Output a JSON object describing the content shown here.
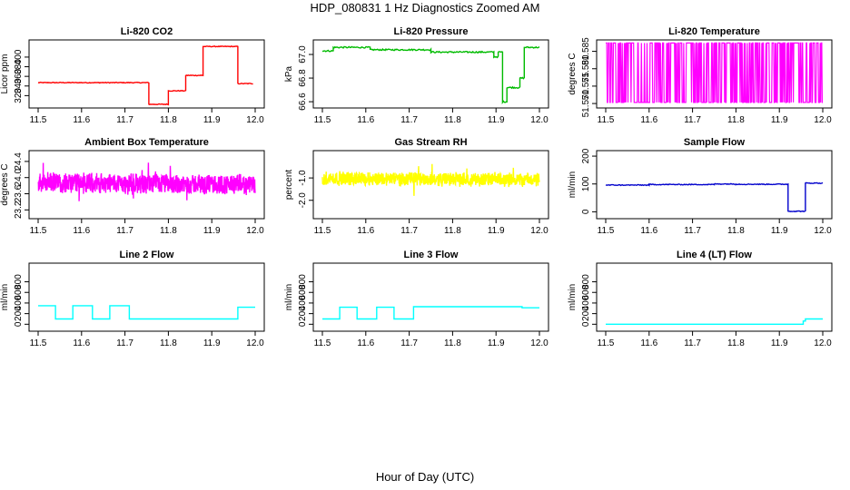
{
  "figure": {
    "title": "HDP_080831  1 Hz Diagnostics Zoomed AM",
    "xlabel": "Hour of Day (UTC)"
  },
  "chart_data": [
    {
      "type": "line",
      "title": "Li-820 CO2",
      "ylabel": "Licor ppm",
      "color": "#ff0000",
      "xlim": [
        11.5,
        12.0
      ],
      "ylim": [
        300,
        430
      ],
      "xticks": [
        "11.5",
        "11.6",
        "11.7",
        "11.8",
        "11.9",
        "12.0"
      ],
      "yticks": [
        {
          "v": 320,
          "label": "320"
        },
        {
          "v": 340,
          "label": "340"
        },
        {
          "v": 360,
          "label": "360"
        },
        {
          "v": 380,
          "label": "380"
        },
        {
          "v": 400,
          "label": "400"
        }
      ],
      "steps": [
        [
          11.5,
          11.755,
          347
        ],
        [
          11.755,
          11.8,
          302
        ],
        [
          11.8,
          11.84,
          330
        ],
        [
          11.84,
          11.88,
          362
        ],
        [
          11.88,
          11.96,
          422
        ],
        [
          11.96,
          11.995,
          345
        ]
      ],
      "noise": 0.8
    },
    {
      "type": "line",
      "title": "Li-820 Pressure",
      "ylabel": "kPa",
      "color": "#00bb00",
      "xlim": [
        11.5,
        12.0
      ],
      "ylim": [
        66.57,
        67.1
      ],
      "xticks": [
        "11.5",
        "11.6",
        "11.7",
        "11.8",
        "11.9",
        "12.0"
      ],
      "yticks": [
        {
          "v": 66.6,
          "label": "66.6"
        },
        {
          "v": 66.8,
          "label": "66.8"
        },
        {
          "v": 67.0,
          "label": "67.0"
        }
      ],
      "steps": [
        [
          11.5,
          11.525,
          67.03
        ],
        [
          11.525,
          11.61,
          67.06
        ],
        [
          11.61,
          11.75,
          67.04
        ],
        [
          11.75,
          11.895,
          67.02
        ],
        [
          11.895,
          11.905,
          66.98
        ],
        [
          11.905,
          11.915,
          67.02
        ],
        [
          11.915,
          11.925,
          66.6
        ],
        [
          11.925,
          11.955,
          66.72
        ],
        [
          11.955,
          11.965,
          66.8
        ],
        [
          11.965,
          12.0,
          67.06
        ]
      ],
      "noise": 0.006
    },
    {
      "type": "line",
      "title": "Li-820 Temperature",
      "ylabel": "degrees C",
      "color": "#ff00ff",
      "xlim": [
        11.5,
        12.0
      ],
      "ylim": [
        51.5695,
        51.5875
      ],
      "xticks": [
        "11.5",
        "11.6",
        "11.7",
        "11.8",
        "11.9",
        "12.0"
      ],
      "yticks": [
        {
          "v": 51.57,
          "label": "51.570"
        },
        {
          "v": 51.575,
          "label": "51.575"
        },
        {
          "v": 51.58,
          "label": "51.580"
        },
        {
          "v": 51.585,
          "label": "51.585"
        }
      ],
      "special": "binary",
      "low": 51.5703,
      "high": 51.5874
    },
    {
      "type": "line",
      "title": "Ambient Box Temperature",
      "ylabel": "degrees C",
      "color": "#ff00ff",
      "xlim": [
        11.5,
        12.0
      ],
      "ylim": [
        23.05,
        24.6
      ],
      "xticks": [
        "11.5",
        "11.6",
        "11.7",
        "11.8",
        "11.9",
        "12.0"
      ],
      "yticks": [
        {
          "v": 23.2,
          "label": "23.2"
        },
        {
          "v": 23.6,
          "label": "23.6"
        },
        {
          "v": 24.0,
          "label": "24.0"
        },
        {
          "v": 24.4,
          "label": "24.4"
        }
      ],
      "center": 23.85,
      "amp": 0.28,
      "trend": -0.1
    },
    {
      "type": "line",
      "title": "Gas Stream RH",
      "ylabel": "percent",
      "color": "#ffff00",
      "xlim": [
        11.5,
        12.0
      ],
      "ylim": [
        -2.7,
        0.1
      ],
      "xticks": [
        "11.5",
        "11.6",
        "11.7",
        "11.8",
        "11.9",
        "12.0"
      ],
      "yticks": [
        {
          "v": -2.0,
          "label": "-2.0"
        },
        {
          "v": -1.0,
          "label": "-1.0"
        }
      ],
      "center": -1.05,
      "amp": 0.35,
      "trend": -0.1
    },
    {
      "type": "line",
      "title": "Sample Flow",
      "ylabel": "ml/min",
      "color": "#0000cc",
      "xlim": [
        11.5,
        12.0
      ],
      "ylim": [
        -15,
        210
      ],
      "xticks": [
        "11.5",
        "11.6",
        "11.7",
        "11.8",
        "11.9",
        "12.0"
      ],
      "yticks": [
        {
          "v": 0,
          "label": "0"
        },
        {
          "v": 100,
          "label": "100"
        },
        {
          "v": 200,
          "label": "200"
        }
      ],
      "steps": [
        [
          11.5,
          11.6,
          96
        ],
        [
          11.6,
          11.75,
          98
        ],
        [
          11.75,
          11.8,
          100
        ],
        [
          11.8,
          11.92,
          99
        ],
        [
          11.92,
          11.96,
          2
        ],
        [
          11.96,
          12.0,
          103
        ]
      ],
      "noise": 1.5
    },
    {
      "type": "line",
      "title": "Line 2 Flow",
      "ylabel": "ml/min",
      "color": "#00ffff",
      "xlim": [
        11.5,
        12.0
      ],
      "ylim": [
        -80,
        1100
      ],
      "xticks": [
        "11.5",
        "11.6",
        "11.7",
        "11.8",
        "11.9",
        "12.0"
      ],
      "yticks": [
        {
          "v": 0,
          "label": "0"
        },
        {
          "v": 200,
          "label": "200"
        },
        {
          "v": 400,
          "label": "400"
        },
        {
          "v": 600,
          "label": "600"
        },
        {
          "v": 800,
          "label": "800"
        }
      ],
      "steps": [
        [
          11.5,
          11.54,
          350
        ],
        [
          11.54,
          11.58,
          100
        ],
        [
          11.58,
          11.625,
          350
        ],
        [
          11.625,
          11.665,
          100
        ],
        [
          11.665,
          11.71,
          350
        ],
        [
          11.71,
          11.96,
          100
        ],
        [
          11.96,
          12.0,
          320
        ]
      ],
      "noise": 0
    },
    {
      "type": "line",
      "title": "Line 3 Flow",
      "ylabel": "ml/min",
      "color": "#00ffff",
      "xlim": [
        11.5,
        12.0
      ],
      "ylim": [
        -80,
        1100
      ],
      "xticks": [
        "11.5",
        "11.6",
        "11.7",
        "11.8",
        "11.9",
        "12.0"
      ],
      "yticks": [
        {
          "v": 0,
          "label": "0"
        },
        {
          "v": 200,
          "label": "200"
        },
        {
          "v": 400,
          "label": "400"
        },
        {
          "v": 600,
          "label": "600"
        },
        {
          "v": 800,
          "label": "800"
        }
      ],
      "steps": [
        [
          11.5,
          11.54,
          100
        ],
        [
          11.54,
          11.58,
          320
        ],
        [
          11.58,
          11.625,
          100
        ],
        [
          11.625,
          11.665,
          320
        ],
        [
          11.665,
          11.71,
          100
        ],
        [
          11.71,
          11.96,
          330
        ],
        [
          11.96,
          12.0,
          310
        ]
      ],
      "noise": 0
    },
    {
      "type": "line",
      "title": "Line 4 (LT) Flow",
      "ylabel": "ml/min",
      "color": "#00ffff",
      "xlim": [
        11.5,
        12.0
      ],
      "ylim": [
        -80,
        1100
      ],
      "xticks": [
        "11.5",
        "11.6",
        "11.7",
        "11.8",
        "11.9",
        "12.0"
      ],
      "yticks": [
        {
          "v": 0,
          "label": "0"
        },
        {
          "v": 200,
          "label": "200"
        },
        {
          "v": 400,
          "label": "400"
        },
        {
          "v": 600,
          "label": "600"
        },
        {
          "v": 800,
          "label": "800"
        }
      ],
      "steps": [
        [
          11.5,
          11.955,
          0
        ],
        [
          11.955,
          11.96,
          60
        ],
        [
          11.96,
          12.0,
          100
        ]
      ],
      "noise": 0
    }
  ]
}
